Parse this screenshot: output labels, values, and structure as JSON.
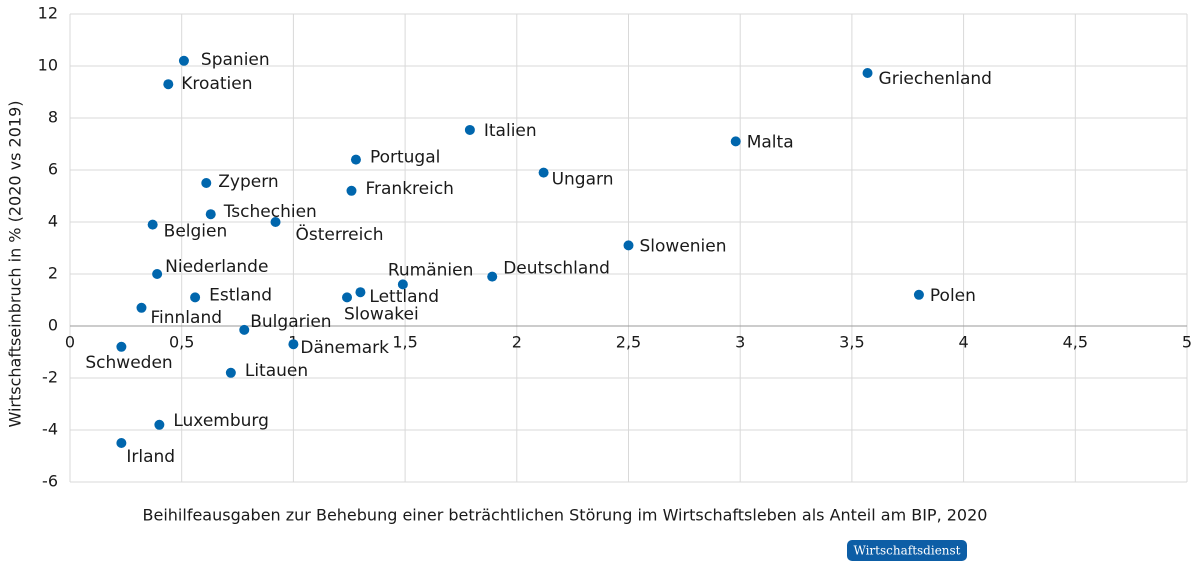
{
  "chart_data": {
    "type": "scatter",
    "y_label": "Wirtschaftseinbruch in % (2020 vs 2019)",
    "x_label": "Beihilfeausgaben zur Behebung einer beträchtlichen Störung im Wirtschaftsleben als Anteil am BIP, 2020",
    "source": "Wirtschaftsdienst",
    "color": "#0066ad",
    "grid": true,
    "point_labels": [
      "Spanien",
      "Kroatien",
      "Griechenland",
      "Italien",
      "Malta",
      "Portugal",
      "Ungarn",
      "Zypern",
      "Frankreich",
      "Tschechien",
      "Österreich",
      "Belgien",
      "Slowenien",
      "Niederlande",
      "Deutschland",
      "Rumänien",
      "Lettland",
      "Slowakei",
      "Estland",
      "Polen",
      "Finnland",
      "Bulgarien",
      "Dänemark",
      "Schweden",
      "Litauen",
      "Luxemburg",
      "Irland"
    ],
    "x": [
      0.51,
      0.44,
      3.57,
      1.79,
      2.98,
      1.28,
      2.12,
      0.61,
      1.26,
      0.63,
      0.92,
      0.37,
      2.5,
      0.39,
      1.89,
      1.49,
      1.3,
      1.24,
      0.56,
      3.8,
      0.32,
      0.78,
      1.0,
      0.23,
      0.72,
      0.4,
      0.23
    ],
    "values": [
      10.2,
      9.3,
      9.73,
      7.54,
      7.1,
      6.4,
      5.9,
      5.5,
      5.2,
      4.3,
      4.0,
      3.9,
      3.1,
      2.0,
      1.9,
      1.6,
      1.3,
      1.1,
      1.1,
      1.2,
      0.7,
      -0.15,
      -0.7,
      -0.8,
      -1.8,
      -3.8,
      -4.5
    ],
    "xlim": [
      0,
      5
    ],
    "xticks": [
      0,
      {
        "value": 0.5,
        "label": "0,5"
      },
      1,
      {
        "value": 1.5,
        "label": "1,5"
      },
      2,
      {
        "value": 2.5,
        "label": "2,5"
      },
      3,
      {
        "value": 3.5,
        "label": "3,5"
      },
      4,
      {
        "value": 4.5,
        "label": "4,5"
      },
      5
    ],
    "ylim": [
      -6,
      12
    ],
    "yticks": [
      -6,
      -4,
      -2,
      0,
      2,
      4,
      6,
      8,
      10,
      12
    ]
  }
}
